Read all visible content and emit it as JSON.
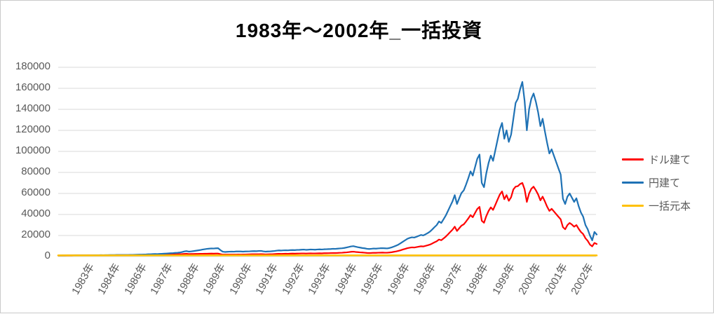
{
  "title": "1983年～2002年_一括投資",
  "chart_data": {
    "type": "line",
    "title": "1983年～2002年_一括投資",
    "xlabel": "",
    "ylabel": "",
    "ylim": [
      0,
      180000
    ],
    "grid": true,
    "legend_position": "right",
    "x_start": "1983",
    "x_end": "2002",
    "points_per_year": 12,
    "y_ticks": [
      0,
      20000,
      40000,
      60000,
      80000,
      100000,
      120000,
      140000,
      160000,
      180000
    ],
    "x_tick_labels": [
      "1983年",
      "1984年",
      "1986年",
      "1987年",
      "1988年",
      "1989年",
      "1990年",
      "1991年",
      "1992年",
      "1993年",
      "1994年",
      "1995年",
      "1996年",
      "1996年",
      "1997年",
      "1998年",
      "1999年",
      "2000年",
      "2001年",
      "2002年"
    ],
    "series": [
      {
        "name": "ドル建て",
        "color": "#FF0000",
        "values": [
          1080,
          1100,
          1120,
          1110,
          1140,
          1160,
          1150,
          1180,
          1200,
          1190,
          1220,
          1240,
          1230,
          1260,
          1250,
          1280,
          1300,
          1290,
          1320,
          1340,
          1330,
          1360,
          1390,
          1410,
          1400,
          1420,
          1440,
          1460,
          1450,
          1480,
          1500,
          1490,
          1520,
          1540,
          1560,
          1590,
          1610,
          1640,
          1670,
          1700,
          1730,
          1760,
          1800,
          1840,
          1820,
          1860,
          1900,
          1940,
          1980,
          2030,
          2080,
          2140,
          2200,
          2260,
          2330,
          2480,
          2600,
          2700,
          2450,
          2520,
          2560,
          2600,
          2650,
          2700,
          2750,
          2800,
          2830,
          2870,
          2900,
          2880,
          2920,
          2950,
          2400,
          1950,
          1900,
          1930,
          1960,
          1990,
          1970,
          2010,
          2050,
          2030,
          2060,
          2100,
          2150,
          2200,
          2250,
          2300,
          2280,
          2350,
          2400,
          2250,
          2150,
          2200,
          2250,
          2350,
          2450,
          2600,
          2700,
          2650,
          2750,
          2800,
          2750,
          2850,
          2900,
          2870,
          2950,
          3000,
          3050,
          3100,
          3000,
          3050,
          3150,
          3100,
          3050,
          3150,
          3200,
          3150,
          3250,
          3300,
          3350,
          3400,
          3500,
          3450,
          3550,
          3650,
          3750,
          3900,
          4100,
          4350,
          4600,
          4750,
          4500,
          4250,
          4050,
          3900,
          3750,
          3550,
          3450,
          3550,
          3650,
          3600,
          3700,
          3800,
          3850,
          3750,
          3700,
          3900,
          4200,
          4600,
          5000,
          5500,
          6100,
          6800,
          7400,
          8100,
          8500,
          8800,
          8650,
          9050,
          9450,
          9900,
          9650,
          10200,
          10800,
          11500,
          12500,
          13600,
          14600,
          16300,
          15600,
          17300,
          19000,
          21200,
          23400,
          25600,
          28500,
          24400,
          27000,
          29500,
          30700,
          33400,
          36300,
          39500,
          37500,
          41500,
          45300,
          47300,
          34100,
          32200,
          38500,
          43400,
          46800,
          44400,
          49200,
          54100,
          59000,
          61900,
          54600,
          58500,
          53100,
          56500,
          63800,
          66500,
          67000,
          69000,
          70000,
          64000,
          52000,
          60000,
          64500,
          66500,
          63000,
          59000,
          53500,
          57000,
          52500,
          47500,
          43500,
          45500,
          43000,
          40500,
          38000,
          35500,
          28000,
          26000,
          30000,
          32000,
          30500,
          28500,
          30000,
          26500,
          23500,
          21500,
          17500,
          15000,
          11500,
          9800,
          13000,
          12000
        ]
      },
      {
        "name": "円建て",
        "color": "#1F72B5",
        "values": [
          1100,
          1130,
          1160,
          1140,
          1180,
          1210,
          1190,
          1230,
          1260,
          1240,
          1280,
          1310,
          1300,
          1340,
          1320,
          1360,
          1390,
          1370,
          1410,
          1440,
          1420,
          1460,
          1500,
          1530,
          1550,
          1530,
          1580,
          1620,
          1600,
          1650,
          1690,
          1670,
          1720,
          1760,
          1800,
          1850,
          1900,
          1980,
          2060,
          2150,
          2240,
          2340,
          2440,
          2550,
          2480,
          2600,
          2720,
          2850,
          2980,
          3120,
          3260,
          3420,
          3580,
          3750,
          3930,
          4400,
          5000,
          5300,
          4800,
          5000,
          5300,
          5600,
          5900,
          6300,
          6700,
          7100,
          7400,
          7600,
          7800,
          7700,
          7900,
          8000,
          6200,
          4700,
          4500,
          4600,
          4700,
          4800,
          4700,
          4900,
          5000,
          4900,
          4800,
          4900,
          5000,
          5100,
          5200,
          5300,
          5200,
          5400,
          5500,
          5100,
          4800,
          4900,
          5000,
          5200,
          5400,
          5700,
          5900,
          5800,
          6000,
          6100,
          6000,
          6200,
          6300,
          6200,
          6400,
          6500,
          6600,
          6700,
          6500,
          6600,
          6800,
          6700,
          6600,
          6800,
          6900,
          6800,
          7000,
          7100,
          7200,
          7300,
          7500,
          7400,
          7600,
          7800,
          8000,
          8300,
          8700,
          9200,
          9700,
          10000,
          9500,
          9000,
          8600,
          8200,
          7900,
          7500,
          7300,
          7500,
          7700,
          7600,
          7800,
          8000,
          8100,
          7900,
          7800,
          8200,
          8800,
          9600,
          10500,
          11500,
          12800,
          14200,
          15600,
          17000,
          17800,
          18400,
          18100,
          18900,
          19700,
          20600,
          20100,
          21200,
          22400,
          23800,
          25800,
          28000,
          30000,
          33500,
          32000,
          35500,
          39000,
          43500,
          48000,
          52500,
          58500,
          50000,
          55500,
          60500,
          63000,
          68500,
          74500,
          81000,
          77000,
          85000,
          93000,
          97000,
          70000,
          66000,
          79000,
          89000,
          96000,
          91000,
          101000,
          111000,
          121000,
          127000,
          112000,
          120000,
          109000,
          116000,
          131000,
          146000,
          150000,
          159000,
          166000,
          148000,
          120000,
          140000,
          150000,
          155000,
          147000,
          137000,
          124000,
          131000,
          119000,
          108000,
          98000,
          102000,
          96000,
          90000,
          84000,
          78000,
          55000,
          50000,
          57000,
          60000,
          56000,
          52000,
          55500,
          48000,
          42000,
          38000,
          30000,
          26000,
          20000,
          15500,
          23500,
          21000
        ]
      },
      {
        "name": "一括元本",
        "color": "#FFC000",
        "constant": 1200,
        "values": [
          1200,
          1200
        ]
      }
    ]
  },
  "legend": {
    "items": [
      {
        "label": "ドル建て",
        "color": "#FF0000"
      },
      {
        "label": "円建て",
        "color": "#1F72B5"
      },
      {
        "label": "一括元本",
        "color": "#FFC000"
      }
    ]
  },
  "colors": {
    "gridline": "#D9D9D9",
    "axis_text": "#595959",
    "title_text": "#000000",
    "frame_border": "#C9C9C9",
    "background": "#FFFFFF"
  }
}
